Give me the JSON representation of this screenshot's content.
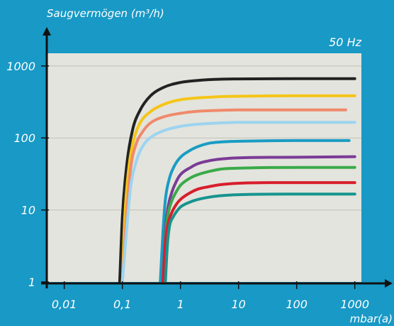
{
  "chart_data": {
    "type": "line",
    "ylabel": "Saugvermögen (m³/h)",
    "xlabel": "mbar(a)",
    "annotation": "50 Hz",
    "x_scale": "log",
    "y_scale": "log",
    "xlim": [
      0.005,
      1300
    ],
    "ylim": [
      1,
      1500
    ],
    "x_ticks": [
      0.01,
      0.1,
      1,
      10,
      100,
      1000
    ],
    "x_tick_labels": [
      "0,01",
      "0,1",
      "1",
      "10",
      "100",
      "1000"
    ],
    "y_ticks": [
      1,
      10,
      100,
      1000
    ],
    "y_tick_labels": [
      "1",
      "10",
      "100",
      "1000"
    ],
    "grid": "horizontal",
    "colors": {
      "background": "#1899c6",
      "plot_area": "#e3e4dd",
      "axes": "#111111",
      "grid": "#bfc0b8",
      "text": "#ffffff"
    },
    "series": [
      {
        "color": "#222222",
        "x": [
          0.09,
          0.1,
          0.12,
          0.15,
          0.2,
          0.3,
          0.5,
          1,
          2,
          5,
          10,
          100,
          1000
        ],
        "values": [
          1,
          8,
          45,
          130,
          240,
          380,
          500,
          590,
          630,
          655,
          660,
          665,
          665
        ]
      },
      {
        "color": "#f5c518",
        "x": [
          0.1,
          0.11,
          0.13,
          0.16,
          0.2,
          0.3,
          0.5,
          1,
          2,
          5,
          10,
          100,
          1000
        ],
        "values": [
          1,
          8,
          40,
          100,
          160,
          230,
          290,
          340,
          360,
          375,
          380,
          385,
          385
        ]
      },
      {
        "color": "#ef8a6b",
        "x": [
          0.1,
          0.12,
          0.14,
          0.17,
          0.22,
          0.3,
          0.5,
          1,
          2,
          5,
          10,
          100,
          700
        ],
        "values": [
          1,
          10,
          40,
          80,
          120,
          160,
          195,
          220,
          235,
          242,
          245,
          245,
          245
        ]
      },
      {
        "color": "#9cd4f0",
        "x": [
          0.1,
          0.12,
          0.14,
          0.17,
          0.22,
          0.3,
          0.5,
          1,
          2,
          5,
          10,
          100,
          1000
        ],
        "values": [
          1,
          6,
          22,
          45,
          75,
          100,
          125,
          145,
          155,
          162,
          165,
          165,
          165
        ]
      },
      {
        "color": "#1a9cc4",
        "x": [
          0.45,
          0.5,
          0.55,
          0.65,
          0.8,
          1,
          1.5,
          2,
          3,
          5,
          10,
          100,
          800
        ],
        "values": [
          1,
          5,
          14,
          28,
          42,
          54,
          68,
          76,
          84,
          88,
          90,
          92,
          92
        ]
      },
      {
        "color": "#7a3b96",
        "x": [
          0.5,
          0.55,
          0.6,
          0.7,
          0.85,
          1,
          1.5,
          2,
          3,
          5,
          10,
          100,
          1000
        ],
        "values": [
          1,
          5,
          10,
          17,
          25,
          31,
          39,
          44,
          48,
          51,
          53,
          54,
          55
        ]
      },
      {
        "color": "#3aaa48",
        "x": [
          0.5,
          0.55,
          0.6,
          0.7,
          0.85,
          1,
          1.5,
          2,
          3,
          5,
          10,
          100,
          1000
        ],
        "values": [
          1,
          4,
          8,
          13,
          18,
          22,
          28,
          31,
          34,
          37,
          38,
          39,
          39
        ]
      },
      {
        "color": "#d81e2c",
        "x": [
          0.5,
          0.55,
          0.6,
          0.7,
          0.85,
          1,
          1.5,
          2,
          3,
          5,
          10,
          100,
          1000
        ],
        "values": [
          1,
          3.5,
          6,
          9,
          12,
          14,
          17.5,
          19.5,
          21,
          22.5,
          23.5,
          24,
          24
        ]
      },
      {
        "color": "#17948f",
        "x": [
          0.55,
          0.6,
          0.65,
          0.75,
          0.9,
          1,
          1.5,
          2,
          3,
          5,
          10,
          100,
          1000
        ],
        "values": [
          1,
          3.5,
          6,
          8,
          10,
          11,
          13,
          14,
          15,
          15.8,
          16.3,
          16.6,
          16.6
        ]
      }
    ]
  }
}
